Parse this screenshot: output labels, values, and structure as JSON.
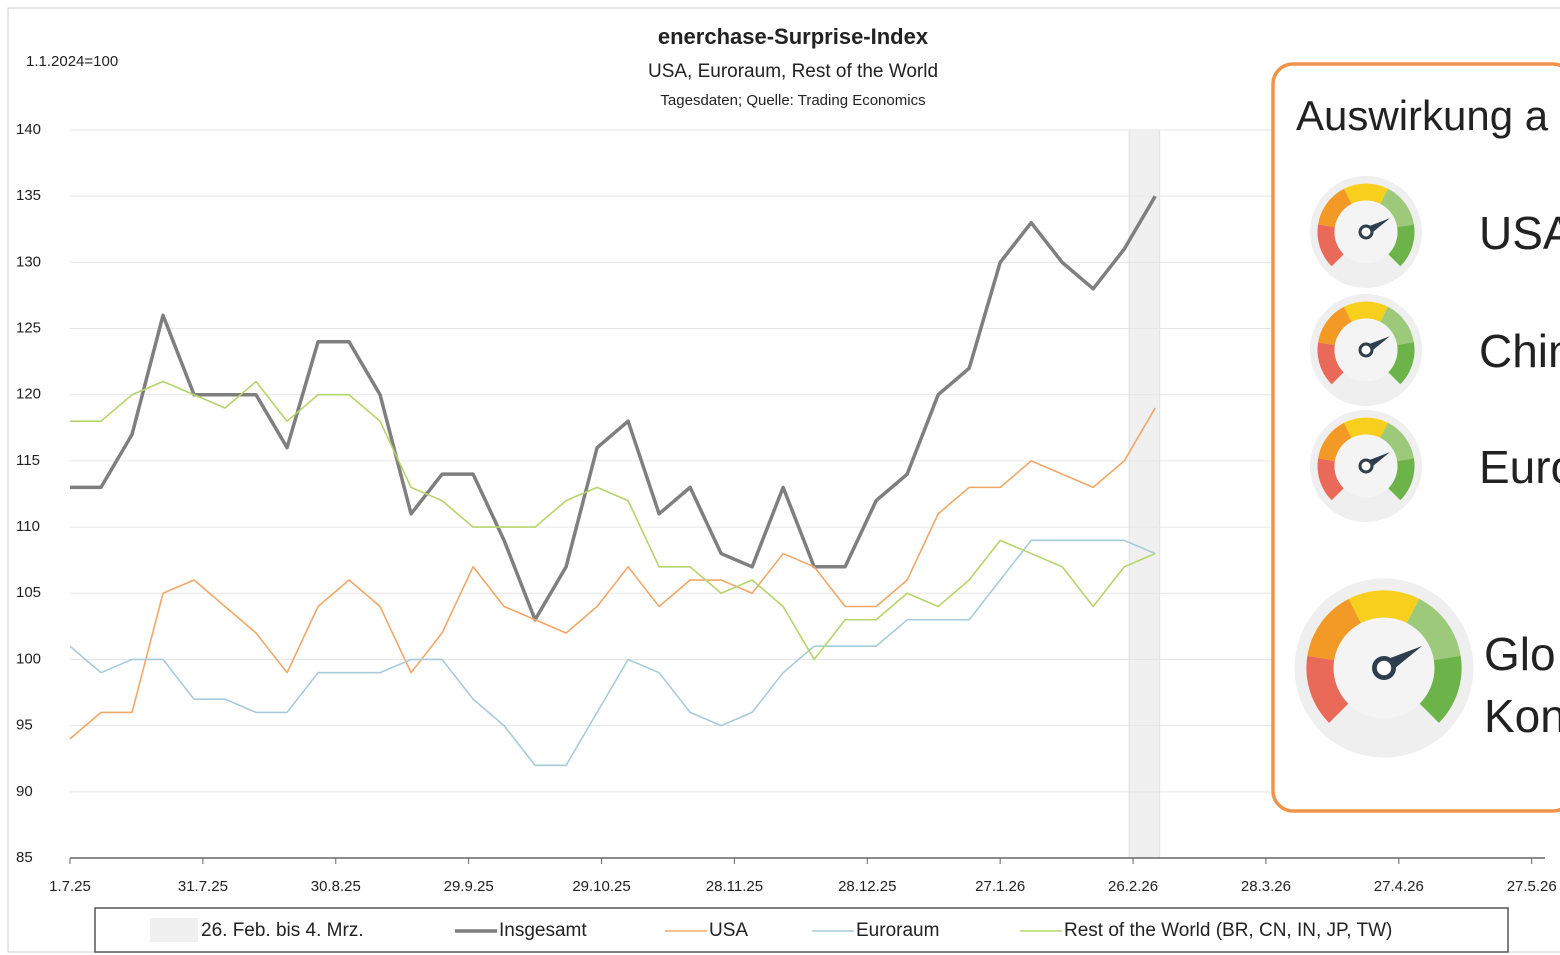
{
  "chart_data": {
    "type": "line",
    "title": "enerchase-Surprise-Index",
    "subtitle": "USA, Euroraum, Rest of the World",
    "source": "Tagesdaten; Quelle: Trading Economics",
    "ylabel": "1.1.2024=100",
    "x": [
      "2025-07-01",
      "2025-07-08",
      "2025-07-15",
      "2025-07-22",
      "2025-07-29",
      "2025-08-05",
      "2025-08-12",
      "2025-08-19",
      "2025-08-26",
      "2025-09-02",
      "2025-09-09",
      "2025-09-16",
      "2025-09-23",
      "2025-09-30",
      "2025-10-07",
      "2025-10-14",
      "2025-10-21",
      "2025-10-28",
      "2025-11-04",
      "2025-11-11",
      "2025-11-18",
      "2025-11-25",
      "2025-12-02",
      "2025-12-09",
      "2025-12-16",
      "2025-12-23",
      "2025-12-30",
      "2026-01-06",
      "2026-01-13",
      "2026-01-20",
      "2026-01-27",
      "2026-02-03",
      "2026-02-10",
      "2026-02-17",
      "2026-02-24",
      "2026-03-03"
    ],
    "series": [
      {
        "name": "Insgesamt",
        "color": "#7f7f7f",
        "width": 3.5,
        "values": [
          113,
          113,
          117,
          126,
          120,
          120,
          120,
          116,
          124,
          124,
          120,
          111,
          114,
          114,
          109,
          103,
          107,
          116,
          118,
          111,
          113,
          108,
          107,
          113,
          107,
          107,
          112,
          114,
          120,
          122,
          130,
          133,
          130,
          128,
          131,
          135
        ]
      },
      {
        "name": "USA",
        "color": "#f0a868",
        "width": 1.6,
        "values": [
          94,
          96,
          96,
          105,
          106,
          104,
          102,
          99,
          104,
          106,
          104,
          99,
          102,
          107,
          104,
          103,
          102,
          104,
          107,
          104,
          106,
          106,
          105,
          108,
          107,
          104,
          104,
          106,
          111,
          113,
          113,
          115,
          114,
          113,
          115,
          119
        ]
      },
      {
        "name": "Euroraum",
        "color": "#a9cbd9",
        "width": 1.6,
        "values": [
          101,
          99,
          100,
          100,
          97,
          97,
          96,
          96,
          99,
          99,
          99,
          100,
          100,
          97,
          95,
          92,
          92,
          96,
          100,
          99,
          96,
          95,
          96,
          99,
          101,
          101,
          101,
          103,
          103,
          103,
          106,
          109,
          109,
          109,
          109,
          108
        ]
      },
      {
        "name": "Rest of the World (BR, CN, IN, JP, TW)",
        "color": "#b5d56a",
        "width": 1.6,
        "values": [
          118,
          118,
          120,
          121,
          120,
          119,
          121,
          118,
          120,
          120,
          118,
          113,
          112,
          110,
          110,
          110,
          112,
          113,
          112,
          107,
          107,
          105,
          106,
          104,
          100,
          103,
          103,
          105,
          104,
          106,
          109,
          108,
          107,
          104,
          107,
          108
        ]
      }
    ],
    "shade": {
      "label": "26. Feb. bis 4. Mrz.",
      "from": "2026-02-26",
      "to": "2026-03-04",
      "color": "#f0f0f0"
    },
    "xlim": [
      "2025-07-01",
      "2026-05-30"
    ],
    "xticks": [
      {
        "value": "2025-07-01",
        "label": "1.7.25"
      },
      {
        "value": "2025-07-31",
        "label": "31.7.25"
      },
      {
        "value": "2025-08-30",
        "label": "30.8.25"
      },
      {
        "value": "2025-09-29",
        "label": "29.9.25"
      },
      {
        "value": "2025-10-29",
        "label": "29.10.25"
      },
      {
        "value": "2025-11-28",
        "label": "28.11.25"
      },
      {
        "value": "2025-12-28",
        "label": "28.12.25"
      },
      {
        "value": "2026-01-27",
        "label": "27.1.26"
      },
      {
        "value": "2026-02-26",
        "label": "26.2.26"
      },
      {
        "value": "2026-03-28",
        "label": "28.3.26"
      },
      {
        "value": "2026-04-27",
        "label": "27.4.26"
      },
      {
        "value": "2026-05-27",
        "label": "27.5.26"
      }
    ],
    "ylim": [
      85,
      140
    ],
    "yticks": [
      85,
      90,
      95,
      100,
      105,
      110,
      115,
      120,
      125,
      130,
      135,
      140
    ],
    "grid": true
  },
  "panel": {
    "title": "Auswirkung a",
    "gauges": [
      "USA",
      "Chin",
      "Euro"
    ],
    "global": [
      "Glo",
      "Kon"
    ]
  }
}
